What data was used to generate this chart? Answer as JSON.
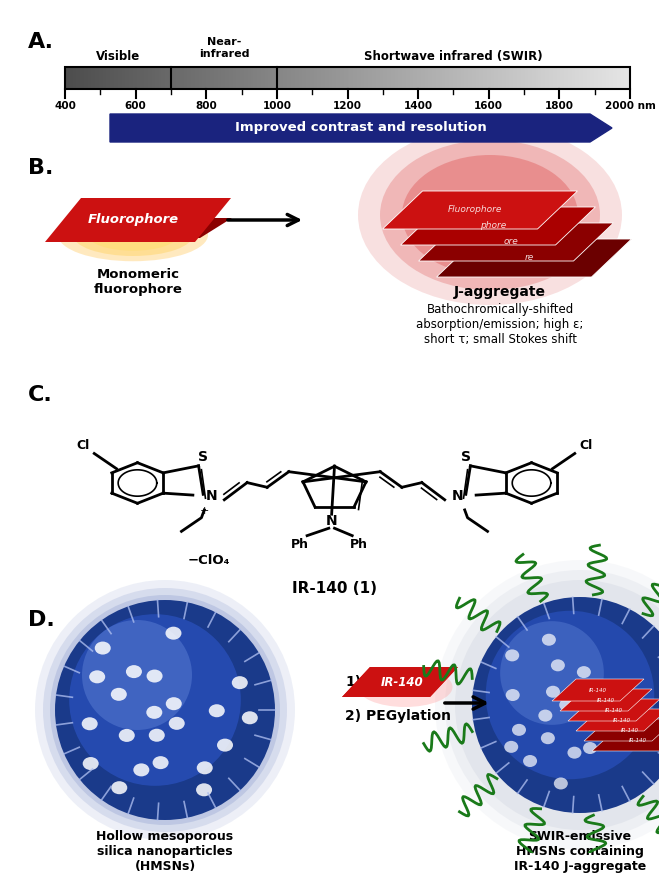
{
  "fig_width": 6.49,
  "fig_height": 8.43,
  "bg_color": "#ffffff",
  "panel_label_fontsize": 16,
  "section_A": {
    "tick_values": [
      400,
      600,
      800,
      1000,
      1200,
      1400,
      1600,
      1800,
      2000
    ],
    "minor_ticks": [
      500,
      700,
      900,
      1100,
      1300,
      1500,
      1700,
      1900
    ],
    "div_wls": [
      700,
      1000
    ],
    "arrow_text": "Improved contrast and resolution",
    "arrow_color": "#1a237e"
  },
  "section_B": {
    "monomer_label": "Monomeric\nfluorophore",
    "aggregate_label": "J-aggregate",
    "aggregate_sublabel": "Bathochromically-shifted\nabsorption/emission; high ε;\nshort τ; small Stokes shift",
    "ribbon_colors": [
      "#6b0000",
      "#8b0000",
      "#aa0000",
      "#cc1111"
    ],
    "monomer_glow_color": "#ffaa00"
  },
  "section_C": {
    "compound_label": "IR-140 (1)"
  },
  "section_D": {
    "left_label": "Hollow mesoporous\nsilica nanoparticles\n(HMSNs)",
    "right_label": "SWIR-emissive\nHMSNs containing\nIR-140 J-aggregate",
    "sphere_dark": "#1a3a8a",
    "sphere_mid": "#2a52c0",
    "sphere_light": "#5b7fd4",
    "sphere_inner": "#7090e0",
    "peg_color": "#1a7a1a",
    "ribbon_color": "#cc0000",
    "ribbon_dark": "#8b0000",
    "glow_color": "#c0c8d8",
    "arrow_color": "#111111"
  }
}
